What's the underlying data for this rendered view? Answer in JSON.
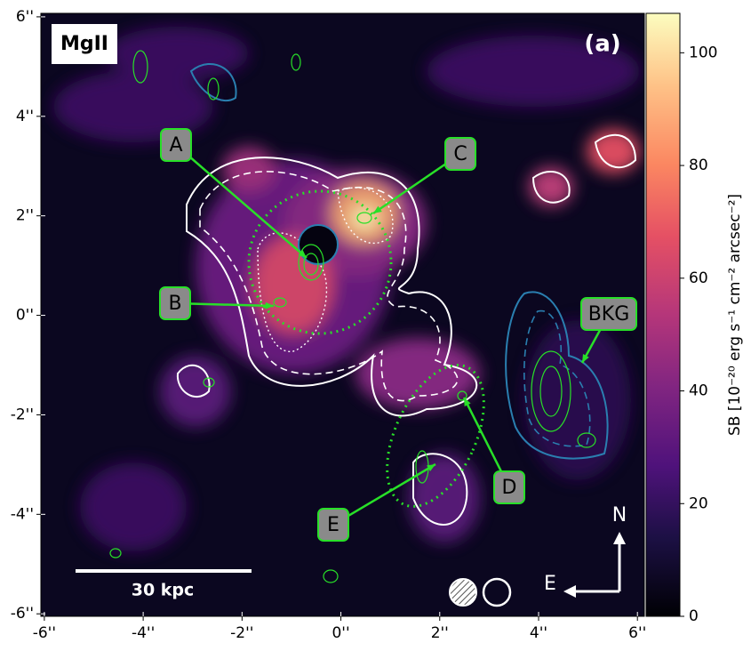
{
  "chart_data": {
    "type": "image",
    "line_label": "MgII",
    "panel_label": "(a)",
    "xlim": [
      -6.07,
      6.14
    ],
    "ylim": [
      -6.05,
      6.07
    ],
    "xticks": [
      {
        "value": -6,
        "label": "-6''"
      },
      {
        "value": -4,
        "label": "-4''"
      },
      {
        "value": -2,
        "label": "-2''"
      },
      {
        "value": 0,
        "label": "0''"
      },
      {
        "value": 2,
        "label": "2''"
      },
      {
        "value": 4,
        "label": "4''"
      },
      {
        "value": 6,
        "label": "6''"
      }
    ],
    "yticks": [
      {
        "value": -6,
        "label": "-6''"
      },
      {
        "value": -4,
        "label": "-4''"
      },
      {
        "value": -2,
        "label": "-2''"
      },
      {
        "value": 0,
        "label": "0''"
      },
      {
        "value": 2,
        "label": "2''"
      },
      {
        "value": 4,
        "label": "4''"
      },
      {
        "value": 6,
        "label": "6''"
      }
    ],
    "colorbar": {
      "label": "SB [10⁻²⁰ erg s⁻¹ cm⁻² arcsec⁻²]",
      "clim": [
        0,
        107
      ],
      "ticks": [
        0,
        20,
        40,
        60,
        80,
        100
      ]
    },
    "annotations": [
      "A",
      "B",
      "C",
      "D",
      "E",
      "BKG"
    ],
    "scale_bar": "30 kpc",
    "compass": [
      "N",
      "E"
    ]
  }
}
